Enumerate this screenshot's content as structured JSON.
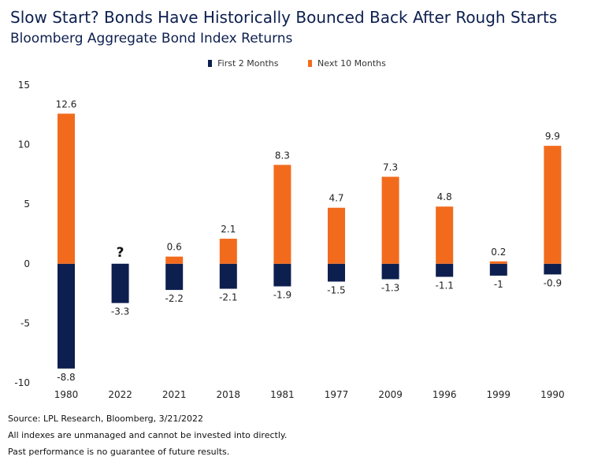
{
  "header": {
    "title": "Slow Start? Bonds Have Historically Bounced Back After Rough Starts",
    "subtitle": "Bloomberg Aggregate Bond Index Returns"
  },
  "legend": {
    "items": [
      {
        "label": "First 2 Months",
        "color": "#0d1f4f"
      },
      {
        "label": "Next 10 Months",
        "color": "#f26b1d"
      }
    ]
  },
  "chart_data": {
    "type": "bar",
    "stacked": true,
    "categories": [
      "1980",
      "2022",
      "2021",
      "2018",
      "1981",
      "1977",
      "2009",
      "1996",
      "1999",
      "1990"
    ],
    "series": [
      {
        "name": "First 2 Months",
        "color": "#0d1f4f",
        "values": [
          -8.8,
          -3.3,
          -2.2,
          -2.1,
          -1.9,
          -1.5,
          -1.3,
          -1.1,
          -1,
          -0.9
        ]
      },
      {
        "name": "Next 10 Months",
        "color": "#f26b1d",
        "values": [
          12.6,
          null,
          0.6,
          2.1,
          8.3,
          4.7,
          7.3,
          4.8,
          0.2,
          9.9
        ]
      }
    ],
    "positive_labels": [
      "12.6",
      "?",
      "0.6",
      "2.1",
      "8.3",
      "4.7",
      "7.3",
      "4.8",
      "0.2",
      "9.9"
    ],
    "negative_labels": [
      "-8.8",
      "-3.3",
      "-2.2",
      "-2.1",
      "-1.9",
      "-1.5",
      "-1.3",
      "-1.1",
      "-1",
      "-0.9"
    ],
    "yticks": [
      "15",
      "10",
      "5",
      "0",
      "-5",
      "-10"
    ],
    "ylim": [
      -10,
      15
    ],
    "grid": false,
    "legend_position": "top-center"
  },
  "footnotes": {
    "source": "Source: LPL Research, Bloomberg, 3/21/2022",
    "disclaimer1": "All indexes are unmanaged and cannot be invested into directly.",
    "disclaimer2": "Past performance is no guarantee of future results."
  }
}
